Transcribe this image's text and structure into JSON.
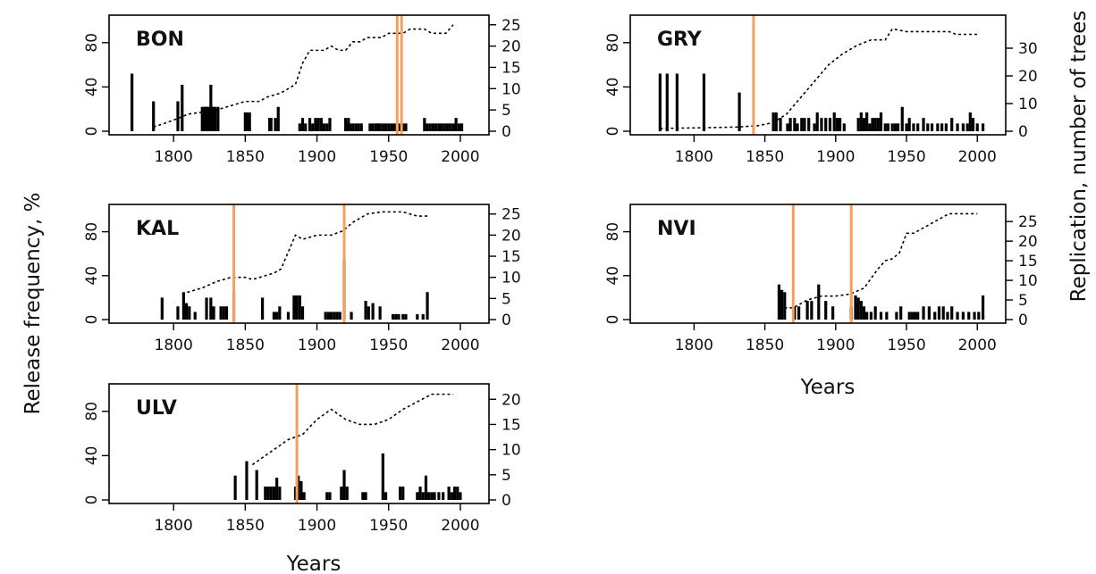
{
  "ylabel_left": "Release frequency, %",
  "ylabel_right": "Replication, number of trees",
  "xlabel": "Years",
  "colors": {
    "release_event": "#f5a15a",
    "bars": "#000000",
    "replication": "#000000"
  },
  "chart_data": [
    {
      "type": "bar",
      "title": "BON",
      "xlim": [
        1760,
        2015
      ],
      "ylim": [
        0,
        100
      ],
      "y2lim": [
        0,
        26
      ],
      "xticks": [
        "1800",
        "1850",
        "1900",
        "1950",
        "2000"
      ],
      "yticks": [
        "0",
        "40",
        "80"
      ],
      "y2ticks": [
        "0",
        "5",
        "10",
        "15",
        "20",
        "25"
      ],
      "release_frequency": {
        "x": [
          1771,
          1786,
          1803,
          1806,
          1820,
          1821,
          1822,
          1823,
          1824,
          1825,
          1826,
          1827,
          1828,
          1829,
          1831,
          1850,
          1851,
          1852,
          1853,
          1867,
          1868,
          1871,
          1873,
          1888,
          1890,
          1892,
          1895,
          1897,
          1899,
          1900,
          1901,
          1903,
          1905,
          1907,
          1909,
          1920,
          1921,
          1922,
          1923,
          1925,
          1927,
          1929,
          1931,
          1937,
          1939,
          1941,
          1942,
          1943,
          1944,
          1946,
          1948,
          1950,
          1952,
          1954,
          1956,
          1958,
          1960,
          1962,
          1975,
          1977,
          1979,
          1981,
          1983,
          1985,
          1987,
          1989,
          1991,
          1993,
          1995,
          1997,
          1999,
          2001
        ],
        "y": [
          52,
          27,
          27,
          42,
          22,
          22,
          22,
          22,
          22,
          22,
          42,
          22,
          22,
          22,
          22,
          17,
          17,
          12,
          17,
          12,
          12,
          12,
          22,
          7,
          12,
          7,
          12,
          7,
          12,
          7,
          12,
          12,
          7,
          7,
          12,
          12,
          7,
          12,
          7,
          7,
          7,
          7,
          7,
          7,
          7,
          7,
          7,
          7,
          7,
          7,
          7,
          7,
          7,
          7,
          7,
          7,
          7,
          7,
          12,
          7,
          7,
          7,
          7,
          7,
          7,
          7,
          7,
          7,
          7,
          12,
          7,
          7
        ]
      },
      "replication": {
        "x": [
          1786,
          1795,
          1803,
          1810,
          1820,
          1830,
          1840,
          1850,
          1855,
          1860,
          1865,
          1870,
          1875,
          1880,
          1885,
          1890,
          1895,
          1900,
          1905,
          1910,
          1915,
          1920,
          1925,
          1930,
          1935,
          1940,
          1945,
          1950,
          1955,
          1960,
          1965,
          1970,
          1975,
          1980,
          1985,
          1990,
          1995
        ],
        "y": [
          1,
          2,
          3,
          4,
          4.5,
          5,
          6,
          7,
          7,
          7,
          8,
          8.5,
          9,
          10,
          11,
          16,
          19,
          19,
          19,
          20,
          19,
          19,
          21,
          21,
          22,
          22,
          22,
          23,
          23,
          23,
          24,
          24,
          24,
          23,
          23,
          23,
          25
        ]
      },
      "release_events": [
        1956,
        1959
      ]
    },
    {
      "type": "bar",
      "title": "GRY",
      "xlim": [
        1760,
        2015
      ],
      "ylim": [
        0,
        100
      ],
      "y2lim": [
        0,
        40
      ],
      "xticks": [
        "1800",
        "1850",
        "1900",
        "1950",
        "2000"
      ],
      "yticks": [
        "0",
        "40",
        "80"
      ],
      "y2ticks": [
        "0",
        "10",
        "20",
        "30"
      ],
      "release_frequency": {
        "x": [
          1776,
          1781,
          1788,
          1807,
          1832,
          1856,
          1858,
          1861,
          1866,
          1868,
          1871,
          1873,
          1876,
          1878,
          1881,
          1885,
          1887,
          1890,
          1893,
          1896,
          1899,
          1901,
          1903,
          1906,
          1916,
          1918,
          1920,
          1922,
          1924,
          1926,
          1928,
          1930,
          1932,
          1935,
          1937,
          1940,
          1942,
          1944,
          1947,
          1950,
          1952,
          1955,
          1958,
          1962,
          1965,
          1968,
          1972,
          1975,
          1978,
          1982,
          1986,
          1990,
          1993,
          1995,
          1997,
          2000,
          2004
        ],
        "y": [
          52,
          52,
          52,
          52,
          35,
          17,
          17,
          12,
          7,
          12,
          12,
          7,
          12,
          12,
          12,
          7,
          17,
          12,
          12,
          12,
          17,
          12,
          12,
          7,
          12,
          17,
          12,
          17,
          7,
          12,
          12,
          12,
          17,
          7,
          7,
          7,
          7,
          7,
          22,
          7,
          12,
          7,
          7,
          12,
          7,
          7,
          7,
          7,
          7,
          12,
          7,
          7,
          7,
          17,
          12,
          7,
          7
        ]
      },
      "replication": {
        "x": [
          1776,
          1800,
          1830,
          1845,
          1855,
          1865,
          1875,
          1885,
          1895,
          1905,
          1915,
          1925,
          1935,
          1940,
          1950,
          1960,
          1970,
          1980,
          1985,
          2000
        ],
        "y": [
          1,
          1.2,
          1.5,
          2,
          3,
          6,
          12,
          18,
          24,
          28,
          31,
          33,
          33,
          37,
          36,
          36,
          36,
          36,
          35,
          35
        ]
      },
      "release_events": [
        1842
      ]
    },
    {
      "type": "bar",
      "title": "KAL",
      "xlim": [
        1760,
        2015
      ],
      "ylim": [
        0,
        100
      ],
      "y2lim": [
        0,
        26
      ],
      "xticks": [
        "1800",
        "1850",
        "1900",
        "1950",
        "2000"
      ],
      "yticks": [
        "0",
        "40",
        "80"
      ],
      "y2ticks": [
        "0",
        "5",
        "10",
        "15",
        "20",
        "25"
      ],
      "release_frequency": {
        "x": [
          1792,
          1803,
          1807,
          1809,
          1811,
          1815,
          1823,
          1826,
          1828,
          1833,
          1835,
          1837,
          1842,
          1862,
          1870,
          1872,
          1874,
          1880,
          1884,
          1886,
          1888,
          1890,
          1906,
          1908,
          1910,
          1912,
          1914,
          1916,
          1919,
          1924,
          1934,
          1936,
          1939,
          1944,
          1953,
          1955,
          1957,
          1960,
          1962,
          1970,
          1974,
          1977
        ],
        "y": [
          20,
          12,
          25,
          15,
          12,
          7,
          20,
          20,
          12,
          12,
          12,
          12,
          25,
          20,
          7,
          7,
          12,
          7,
          22,
          22,
          22,
          12,
          7,
          7,
          7,
          7,
          7,
          7,
          55,
          7,
          17,
          12,
          15,
          12,
          5,
          5,
          5,
          5,
          5,
          5,
          5,
          25
        ]
      },
      "replication": {
        "x": [
          1806,
          1810,
          1815,
          1820,
          1830,
          1840,
          1850,
          1855,
          1860,
          1870,
          1875,
          1880,
          1885,
          1890,
          1900,
          1910,
          1918,
          1925,
          1935,
          1945,
          1960,
          1970,
          1977
        ],
        "y": [
          6,
          6.5,
          7,
          7.5,
          9,
          10,
          10,
          9.5,
          10,
          11,
          12,
          16,
          20,
          19,
          20,
          20,
          21,
          23,
          25,
          25.5,
          25.5,
          24.5,
          24.5
        ]
      },
      "release_events": [
        1842,
        1919
      ]
    },
    {
      "type": "bar",
      "title": "NVI",
      "xlim": [
        1760,
        2015
      ],
      "ylim": [
        0,
        100
      ],
      "y2lim": [
        0,
        28
      ],
      "xticks": [
        "1800",
        "1850",
        "1900",
        "1950",
        "2000"
      ],
      "yticks": [
        "0",
        "40",
        "80"
      ],
      "y2ticks": [
        "0",
        "5",
        "10",
        "15",
        "20",
        "25"
      ],
      "release_frequency": {
        "x": [
          1860,
          1862,
          1864,
          1871,
          1874,
          1880,
          1883,
          1888,
          1893,
          1898,
          1911,
          1914,
          1916,
          1918,
          1920,
          1922,
          1925,
          1928,
          1932,
          1936,
          1943,
          1946,
          1952,
          1954,
          1956,
          1958,
          1962,
          1966,
          1970,
          1973,
          1976,
          1979,
          1982,
          1986,
          1990,
          1994,
          1998,
          2001,
          2004
        ],
        "y": [
          32,
          27,
          25,
          12,
          12,
          17,
          17,
          32,
          17,
          12,
          12,
          22,
          20,
          17,
          12,
          7,
          7,
          12,
          7,
          7,
          7,
          12,
          7,
          7,
          7,
          7,
          12,
          12,
          7,
          12,
          12,
          7,
          12,
          7,
          7,
          7,
          7,
          7,
          22
        ]
      },
      "replication": {
        "x": [
          1860,
          1865,
          1870,
          1875,
          1880,
          1890,
          1900,
          1910,
          1920,
          1930,
          1935,
          1940,
          1945,
          1950,
          1955,
          1960,
          1970,
          1980,
          1990,
          2000
        ],
        "y": [
          3,
          3,
          3,
          4,
          5,
          6,
          6,
          6.5,
          8,
          13,
          15,
          15.5,
          17,
          22,
          22,
          23,
          25,
          27,
          27,
          27
        ]
      },
      "release_events": [
        1870,
        1911
      ]
    },
    {
      "type": "bar",
      "title": "ULV",
      "xlim": [
        1760,
        2015
      ],
      "ylim": [
        0,
        100
      ],
      "y2lim": [
        0,
        22
      ],
      "xticks": [
        "1800",
        "1850",
        "1900",
        "1950",
        "2000"
      ],
      "yticks": [
        "0",
        "40",
        "80"
      ],
      "y2ticks": [
        "0",
        "5",
        "10",
        "15",
        "20"
      ],
      "release_frequency": {
        "x": [
          1843,
          1851,
          1858,
          1864,
          1866,
          1868,
          1870,
          1872,
          1874,
          1885,
          1887,
          1889,
          1891,
          1907,
          1909,
          1917,
          1919,
          1921,
          1932,
          1934,
          1946,
          1948,
          1958,
          1960,
          1970,
          1972,
          1974,
          1976,
          1978,
          1980,
          1982,
          1985,
          1988,
          1992,
          1994,
          1996,
          1998,
          2000
        ],
        "y": [
          22,
          35,
          27,
          12,
          12,
          12,
          12,
          20,
          12,
          12,
          22,
          17,
          7,
          7,
          7,
          12,
          27,
          12,
          7,
          7,
          42,
          7,
          12,
          12,
          7,
          12,
          7,
          22,
          7,
          7,
          7,
          7,
          7,
          12,
          7,
          12,
          12,
          7
        ]
      },
      "replication": {
        "x": [
          1855,
          1860,
          1870,
          1880,
          1890,
          1900,
          1910,
          1915,
          1920,
          1930,
          1940,
          1950,
          1960,
          1970,
          1980,
          1990,
          1995
        ],
        "y": [
          7,
          8,
          10,
          12,
          13,
          16,
          18,
          17,
          16,
          15,
          15,
          16,
          18,
          19.5,
          21,
          21,
          21
        ]
      },
      "release_events": [
        1886
      ]
    }
  ]
}
